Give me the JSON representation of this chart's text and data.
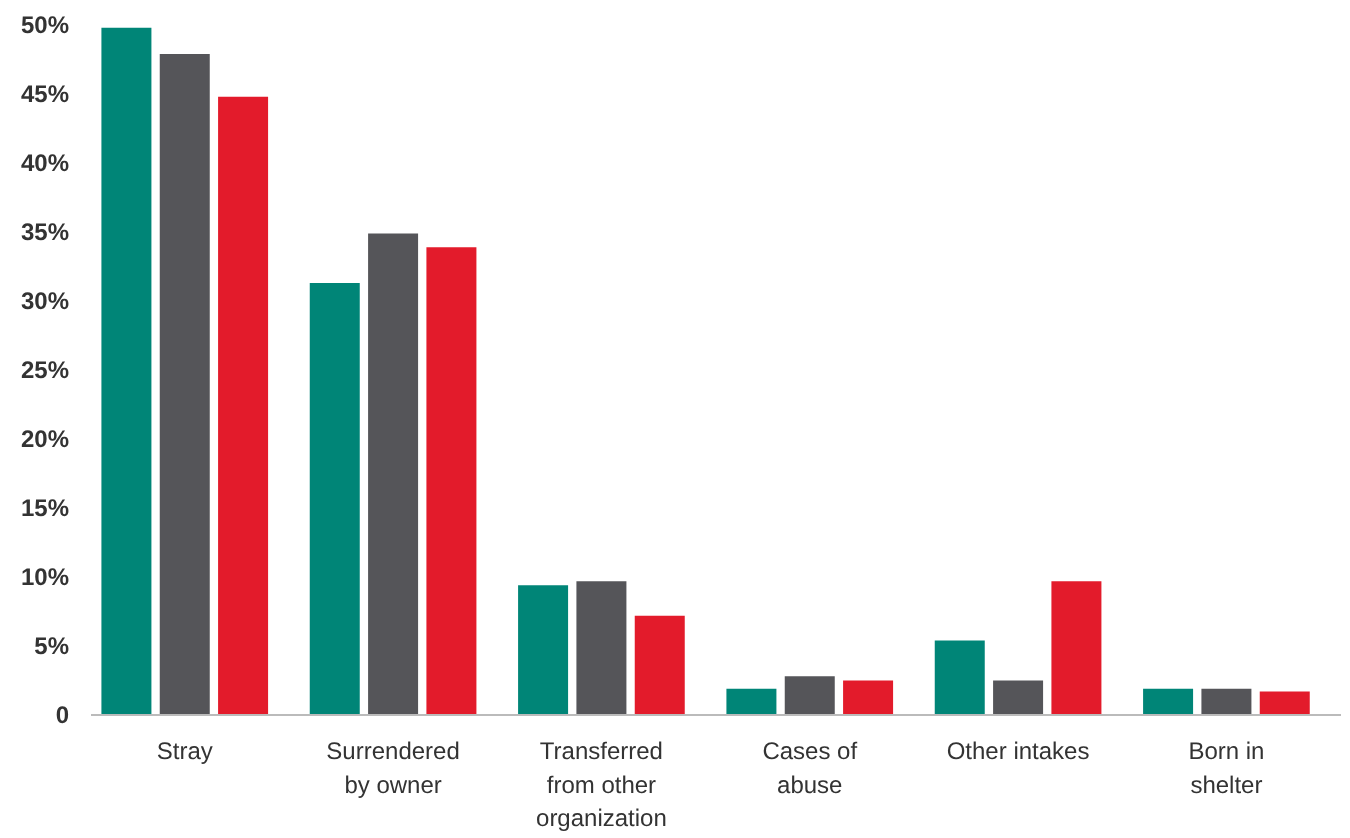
{
  "chart_data": {
    "type": "bar",
    "categories": [
      "Stray",
      "Surrendered by owner",
      "Transferred from other organization",
      "Cases of abuse",
      "Other intakes",
      "Born in shelter"
    ],
    "series": [
      {
        "color": "#008577",
        "values": [
          49.8,
          31.3,
          9.4,
          1.9,
          5.4,
          1.9
        ]
      },
      {
        "color": "#555559",
        "values": [
          47.9,
          34.9,
          9.7,
          2.8,
          2.5,
          1.9
        ]
      },
      {
        "color": "#e31b2b",
        "values": [
          44.8,
          33.9,
          7.2,
          2.5,
          9.7,
          1.7
        ]
      }
    ],
    "ylim": [
      0,
      50
    ],
    "yticks": [
      {
        "value": 0,
        "label": "0"
      },
      {
        "value": 5,
        "label": "5%"
      },
      {
        "value": 10,
        "label": "10%"
      },
      {
        "value": 15,
        "label": "15%"
      },
      {
        "value": 20,
        "label": "20%"
      },
      {
        "value": 25,
        "label": "25%"
      },
      {
        "value": 30,
        "label": "30%"
      },
      {
        "value": 35,
        "label": "35%"
      },
      {
        "value": 40,
        "label": "40%"
      },
      {
        "value": 45,
        "label": "45%"
      },
      {
        "value": 50,
        "label": "50%"
      }
    ],
    "grid": false
  }
}
